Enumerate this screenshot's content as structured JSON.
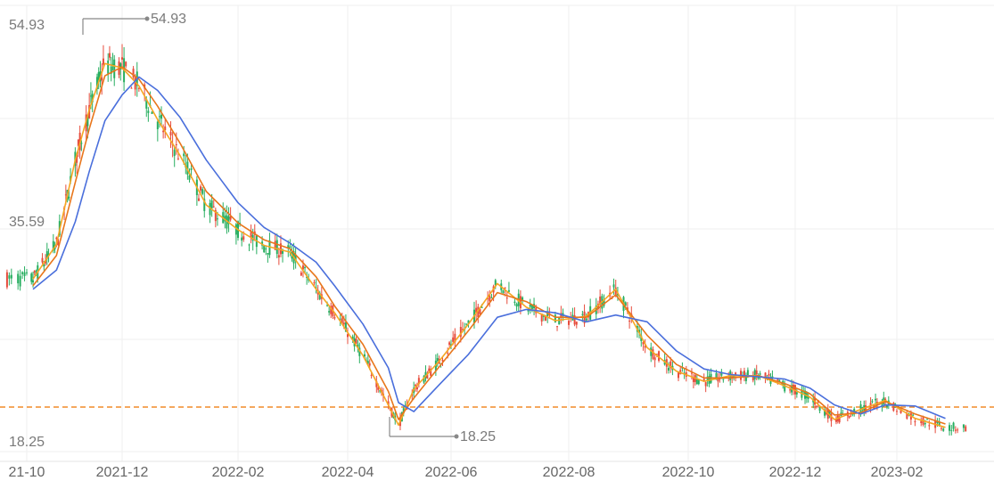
{
  "chart_data": {
    "type": "candlestick",
    "title": "",
    "xlabel": "",
    "ylabel": "",
    "x_ticks": [
      "21-10",
      "2021-12",
      "2022-02",
      "2022-04",
      "2022-06",
      "2022-08",
      "2022-10",
      "2022-12",
      "2023-02"
    ],
    "y_labels": {
      "top": "54.93",
      "mid": "35.59",
      "bottom": "18.25"
    },
    "ylim": [
      17.2,
      56.3
    ],
    "max_marker": {
      "label": "54.93",
      "value": 54.93,
      "date": "2021-11"
    },
    "min_marker": {
      "label": "18.25",
      "value": 18.25,
      "date": "2022-04-27"
    },
    "reference_line": {
      "value": 18.25,
      "style": "dashed"
    },
    "colors": {
      "up": "#e74c3c",
      "down": "#27ae60",
      "ma5": "#f5a623",
      "ma10": "#e8761b",
      "ma20": "#4a6fdc",
      "reference": "#f28c28",
      "marker": "#888888"
    },
    "series": [
      {
        "type": "line",
        "color": "#f5a623",
        "points": [
          [
            "2021-10-05",
            32.4
          ],
          [
            "2021-10-20",
            35.5
          ],
          [
            "2021-11-01",
            43.0
          ],
          [
            "2021-11-10",
            47.5
          ],
          [
            "2021-11-20",
            51.6
          ],
          [
            "2021-12-01",
            51.2
          ],
          [
            "2021-12-10",
            49.6
          ],
          [
            "2021-12-20",
            46.6
          ],
          [
            "2022-01-01",
            43.4
          ],
          [
            "2022-01-15",
            39.0
          ],
          [
            "2022-02-01",
            36.8
          ],
          [
            "2022-02-15",
            35.4
          ],
          [
            "2022-03-01",
            34.8
          ],
          [
            "2022-03-15",
            31.5
          ],
          [
            "2022-03-25",
            29.4
          ],
          [
            "2022-04-10",
            25.6
          ],
          [
            "2022-04-25",
            21.2
          ],
          [
            "2022-05-01",
            19.4
          ],
          [
            "2022-05-10",
            22.6
          ],
          [
            "2022-05-25",
            25.1
          ],
          [
            "2022-06-10",
            28.4
          ],
          [
            "2022-06-25",
            32.0
          ],
          [
            "2022-07-10",
            29.9
          ],
          [
            "2022-07-25",
            28.7
          ],
          [
            "2022-08-10",
            29.1
          ],
          [
            "2022-08-25",
            31.5
          ],
          [
            "2022-09-10",
            26.3
          ],
          [
            "2022-09-25",
            24.2
          ],
          [
            "2022-10-10",
            23.3
          ],
          [
            "2022-10-25",
            23.8
          ],
          [
            "2022-11-10",
            23.8
          ],
          [
            "2022-11-25",
            22.9
          ],
          [
            "2022-12-10",
            21.9
          ],
          [
            "2022-12-25",
            19.9
          ],
          [
            "2023-01-10",
            20.8
          ],
          [
            "2023-01-25",
            21.6
          ],
          [
            "2023-02-10",
            20.0
          ],
          [
            "2023-02-25",
            19.2
          ]
        ]
      },
      {
        "type": "line",
        "color": "#e8761b",
        "points": [
          [
            "2021-10-05",
            31.8
          ],
          [
            "2021-10-20",
            34.5
          ],
          [
            "2021-11-01",
            41.0
          ],
          [
            "2021-11-10",
            45.8
          ],
          [
            "2021-11-20",
            50.5
          ],
          [
            "2021-12-01",
            51.3
          ],
          [
            "2021-12-10",
            50.2
          ],
          [
            "2021-12-20",
            47.8
          ],
          [
            "2022-01-01",
            44.5
          ],
          [
            "2022-01-15",
            40.2
          ],
          [
            "2022-02-01",
            37.4
          ],
          [
            "2022-02-15",
            35.9
          ],
          [
            "2022-03-01",
            35.1
          ],
          [
            "2022-03-15",
            32.6
          ],
          [
            "2022-03-25",
            30.0
          ],
          [
            "2022-04-10",
            26.6
          ],
          [
            "2022-04-25",
            22.4
          ],
          [
            "2022-05-01",
            19.9
          ],
          [
            "2022-05-10",
            21.8
          ],
          [
            "2022-05-25",
            24.6
          ],
          [
            "2022-06-10",
            27.8
          ],
          [
            "2022-06-25",
            31.2
          ],
          [
            "2022-07-10",
            30.4
          ],
          [
            "2022-07-25",
            29.0
          ],
          [
            "2022-08-10",
            29.0
          ],
          [
            "2022-08-25",
            31.0
          ],
          [
            "2022-09-10",
            27.4
          ],
          [
            "2022-09-25",
            24.8
          ],
          [
            "2022-10-10",
            23.6
          ],
          [
            "2022-10-25",
            23.6
          ],
          [
            "2022-11-10",
            23.8
          ],
          [
            "2022-11-25",
            23.1
          ],
          [
            "2022-12-10",
            22.2
          ],
          [
            "2022-12-25",
            20.3
          ],
          [
            "2023-01-10",
            20.5
          ],
          [
            "2023-01-25",
            21.5
          ],
          [
            "2023-02-10",
            20.4
          ],
          [
            "2023-02-25",
            19.5
          ]
        ]
      },
      {
        "type": "line",
        "color": "#4a6fdc",
        "points": [
          [
            "2021-10-05",
            31.5
          ],
          [
            "2021-10-20",
            33.2
          ],
          [
            "2021-11-01",
            37.5
          ],
          [
            "2021-11-10",
            42.0
          ],
          [
            "2021-11-20",
            46.5
          ],
          [
            "2021-12-01",
            48.8
          ],
          [
            "2021-12-10",
            50.4
          ],
          [
            "2021-12-20",
            49.2
          ],
          [
            "2022-01-01",
            46.8
          ],
          [
            "2022-01-15",
            43.0
          ],
          [
            "2022-02-01",
            39.2
          ],
          [
            "2022-02-15",
            37.0
          ],
          [
            "2022-03-01",
            35.6
          ],
          [
            "2022-03-15",
            33.9
          ],
          [
            "2022-03-25",
            31.8
          ],
          [
            "2022-04-10",
            28.4
          ],
          [
            "2022-04-25",
            24.5
          ],
          [
            "2022-05-01",
            21.4
          ],
          [
            "2022-05-10",
            20.6
          ],
          [
            "2022-05-25",
            23.0
          ],
          [
            "2022-06-10",
            25.7
          ],
          [
            "2022-06-25",
            29.0
          ],
          [
            "2022-07-10",
            29.7
          ],
          [
            "2022-07-25",
            29.4
          ],
          [
            "2022-08-10",
            28.6
          ],
          [
            "2022-08-25",
            29.2
          ],
          [
            "2022-09-10",
            28.6
          ],
          [
            "2022-09-25",
            26.0
          ],
          [
            "2022-10-10",
            24.4
          ],
          [
            "2022-10-25",
            23.9
          ],
          [
            "2022-11-10",
            23.7
          ],
          [
            "2022-11-25",
            23.5
          ],
          [
            "2022-12-10",
            22.7
          ],
          [
            "2022-12-25",
            21.2
          ],
          [
            "2023-01-10",
            20.4
          ],
          [
            "2023-01-25",
            21.2
          ],
          [
            "2023-02-10",
            21.1
          ],
          [
            "2023-02-25",
            20.0
          ]
        ]
      }
    ]
  }
}
